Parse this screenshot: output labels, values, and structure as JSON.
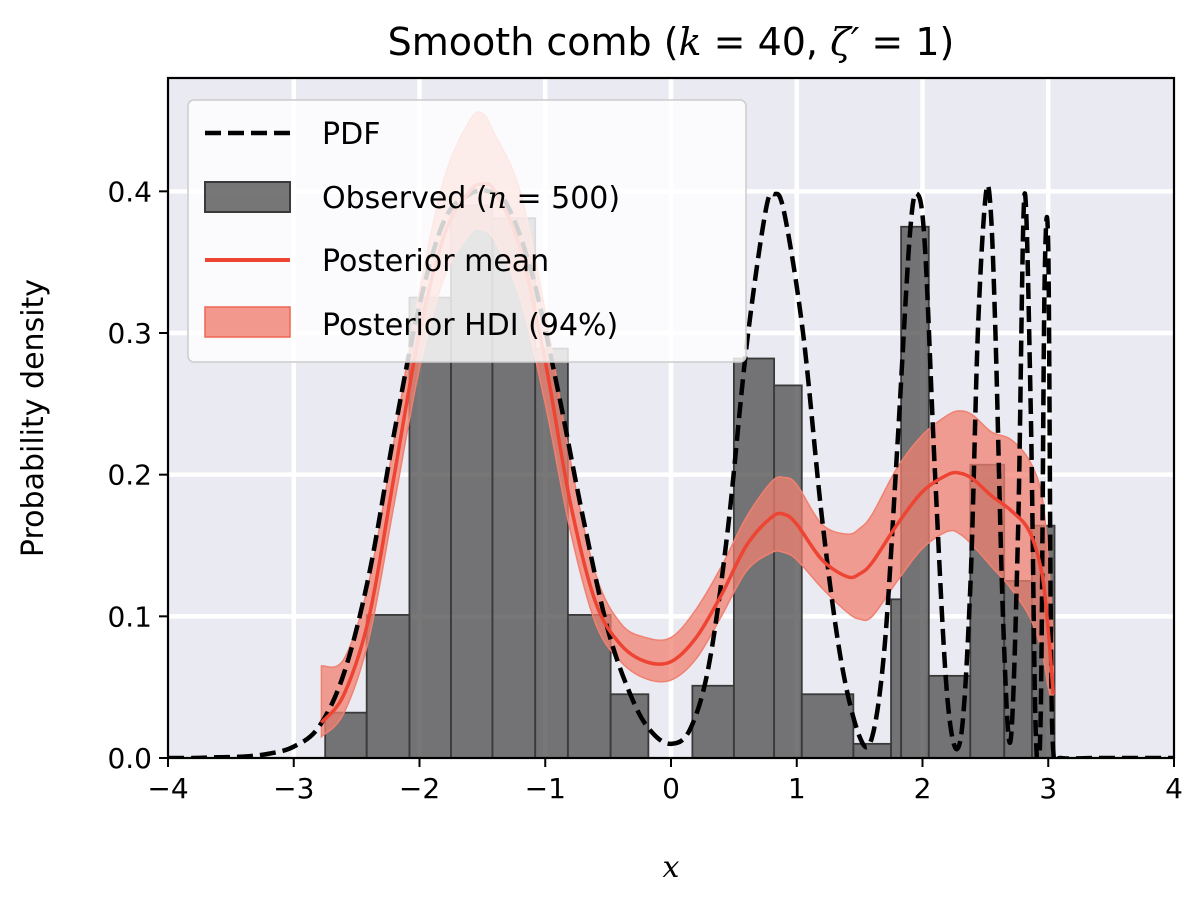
{
  "chart_data": {
    "type": "histogram-with-lines",
    "title_parts": [
      "Smooth comb (",
      "k",
      " = 40, ",
      "ζ′",
      " = 1)"
    ],
    "xlabel": "x",
    "ylabel": "Probability density",
    "xlim": [
      -4,
      4
    ],
    "ylim": [
      0,
      0.48
    ],
    "xticks": [
      -4,
      -3,
      -2,
      -1,
      0,
      1,
      2,
      3,
      4
    ],
    "xtick_labels": [
      "−4",
      "−3",
      "−2",
      "−1",
      "0",
      "1",
      "2",
      "3",
      "4"
    ],
    "yticks": [
      0.0,
      0.1,
      0.2,
      0.3,
      0.4
    ],
    "ytick_labels": [
      "0.0",
      "0.1",
      "0.2",
      "0.3",
      "0.4"
    ],
    "grid": true,
    "background": "#eaeaf2",
    "legend_position": "top-left",
    "legend": [
      {
        "key": "pdf",
        "label": "PDF"
      },
      {
        "key": "observed",
        "label_parts": [
          "Observed (",
          "n",
          " = 500)"
        ]
      },
      {
        "key": "mean",
        "label": "Posterior mean"
      },
      {
        "key": "hdi",
        "label": "Posterior HDI (94%)"
      }
    ],
    "colors": {
      "pdf": "#000000",
      "observed_fill": "#555555",
      "observed_edge": "#3a3a3a",
      "mean": "#ee4433",
      "hdi": "#f08070"
    },
    "histogram": {
      "bins": [
        {
          "x0": -2.75,
          "x1": -2.42,
          "density": 0.032
        },
        {
          "x0": -2.42,
          "x1": -2.08,
          "density": 0.101
        },
        {
          "x0": -2.08,
          "x1": -1.75,
          "density": 0.325
        },
        {
          "x0": -1.75,
          "x1": -1.42,
          "density": 0.39
        },
        {
          "x0": -1.42,
          "x1": -1.08,
          "density": 0.381
        },
        {
          "x0": -1.08,
          "x1": -0.82,
          "density": 0.289
        },
        {
          "x0": -0.82,
          "x1": -0.48,
          "density": 0.101
        },
        {
          "x0": -0.48,
          "x1": -0.18,
          "density": 0.045
        },
        {
          "x0": 0.17,
          "x1": 0.5,
          "density": 0.051
        },
        {
          "x0": 0.5,
          "x1": 0.82,
          "density": 0.282
        },
        {
          "x0": 0.82,
          "x1": 1.04,
          "density": 0.263
        },
        {
          "x0": 1.04,
          "x1": 1.45,
          "density": 0.045
        },
        {
          "x0": 1.45,
          "x1": 1.75,
          "density": 0.01
        },
        {
          "x0": 1.75,
          "x1": 1.83,
          "density": 0.112
        },
        {
          "x0": 1.83,
          "x1": 2.05,
          "density": 0.375
        },
        {
          "x0": 2.05,
          "x1": 2.38,
          "density": 0.058
        },
        {
          "x0": 2.38,
          "x1": 2.65,
          "density": 0.207
        },
        {
          "x0": 2.65,
          "x1": 2.87,
          "density": 0.125
        },
        {
          "x0": 2.87,
          "x1": 3.05,
          "density": 0.164
        }
      ]
    },
    "pdf": {
      "x": [
        -4.0,
        -3.8,
        -3.6,
        -3.4,
        -3.2,
        -3.0,
        -2.8,
        -2.6,
        -2.4,
        -2.2,
        -2.0,
        -1.8,
        -1.6,
        -1.45,
        -1.3,
        -1.1,
        -0.9,
        -0.7,
        -0.5,
        -0.3,
        -0.15,
        0.0,
        0.15,
        0.3,
        0.45,
        0.6,
        0.75,
        0.82,
        0.9,
        1.05,
        1.2,
        1.35,
        1.5,
        1.6,
        1.7,
        1.8,
        1.9,
        1.96,
        2.02,
        2.1,
        2.2,
        2.3,
        2.38,
        2.44,
        2.5,
        2.54,
        2.58,
        2.64,
        2.7,
        2.76,
        2.81,
        2.86,
        2.9,
        2.94,
        2.97,
        3.0,
        3.02,
        3.04,
        3.1,
        3.4,
        4.0
      ],
      "y": [
        0.0,
        0.0,
        0.0005,
        0.001,
        0.003,
        0.008,
        0.022,
        0.06,
        0.13,
        0.23,
        0.32,
        0.38,
        0.398,
        0.4,
        0.39,
        0.34,
        0.26,
        0.17,
        0.09,
        0.04,
        0.018,
        0.01,
        0.02,
        0.065,
        0.16,
        0.29,
        0.385,
        0.398,
        0.385,
        0.3,
        0.17,
        0.07,
        0.015,
        0.015,
        0.08,
        0.22,
        0.37,
        0.398,
        0.36,
        0.2,
        0.04,
        0.012,
        0.12,
        0.3,
        0.395,
        0.39,
        0.3,
        0.1,
        0.012,
        0.16,
        0.397,
        0.25,
        0.02,
        0.03,
        0.33,
        0.36,
        0.1,
        0.005,
        0.0,
        0.0,
        0.0
      ]
    },
    "posterior_mean": {
      "x": [
        -2.78,
        -2.6,
        -2.4,
        -2.2,
        -2.0,
        -1.8,
        -1.6,
        -1.5,
        -1.4,
        -1.2,
        -1.0,
        -0.8,
        -0.6,
        -0.4,
        -0.2,
        0.0,
        0.2,
        0.4,
        0.6,
        0.8,
        0.9,
        1.0,
        1.2,
        1.4,
        1.5,
        1.6,
        1.8,
        2.0,
        2.2,
        2.3,
        2.4,
        2.55,
        2.7,
        2.85,
        2.95,
        3.0,
        3.04
      ],
      "y": [
        0.025,
        0.045,
        0.1,
        0.2,
        0.3,
        0.37,
        0.4,
        0.405,
        0.4,
        0.36,
        0.28,
        0.18,
        0.11,
        0.08,
        0.068,
        0.068,
        0.085,
        0.115,
        0.15,
        0.17,
        0.172,
        0.165,
        0.14,
        0.128,
        0.13,
        0.138,
        0.165,
        0.188,
        0.2,
        0.201,
        0.197,
        0.185,
        0.175,
        0.16,
        0.13,
        0.09,
        0.045
      ]
    },
    "posterior_hdi": {
      "x": [
        -2.78,
        -2.6,
        -2.4,
        -2.2,
        -2.0,
        -1.8,
        -1.6,
        -1.5,
        -1.4,
        -1.2,
        -1.0,
        -0.8,
        -0.6,
        -0.4,
        -0.2,
        0.0,
        0.2,
        0.4,
        0.6,
        0.8,
        0.9,
        1.0,
        1.2,
        1.4,
        1.5,
        1.6,
        1.8,
        2.0,
        2.2,
        2.3,
        2.4,
        2.55,
        2.7,
        2.85,
        2.95,
        3.0,
        3.04
      ],
      "lower": [
        0.015,
        0.032,
        0.085,
        0.18,
        0.275,
        0.34,
        0.37,
        0.373,
        0.365,
        0.325,
        0.25,
        0.16,
        0.095,
        0.068,
        0.056,
        0.055,
        0.07,
        0.1,
        0.132,
        0.145,
        0.145,
        0.14,
        0.12,
        0.103,
        0.098,
        0.1,
        0.125,
        0.148,
        0.16,
        0.158,
        0.15,
        0.135,
        0.12,
        0.1,
        0.075,
        0.05,
        0.035
      ],
      "upper": [
        0.065,
        0.07,
        0.125,
        0.225,
        0.33,
        0.41,
        0.45,
        0.455,
        0.44,
        0.4,
        0.315,
        0.21,
        0.13,
        0.095,
        0.085,
        0.085,
        0.105,
        0.135,
        0.17,
        0.195,
        0.198,
        0.193,
        0.165,
        0.158,
        0.162,
        0.172,
        0.205,
        0.228,
        0.242,
        0.245,
        0.242,
        0.23,
        0.225,
        0.21,
        0.185,
        0.14,
        0.085
      ]
    }
  }
}
